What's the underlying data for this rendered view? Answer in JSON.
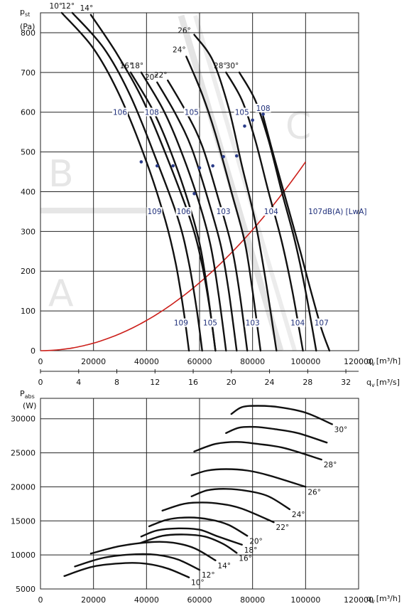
{
  "chart_data": [
    {
      "type": "line",
      "title": "",
      "ylabel": "pst",
      "ylabel_main": "p",
      "ylabel_sub": "st",
      "yunit": "(Pa)",
      "xlabel": "qv [m³/h]",
      "xlabel_main": "q",
      "xlabel_sub": "v",
      "xunit": "[m³/h]",
      "xlabel2": "qv [m³/s]",
      "xlabel2_main": "q",
      "xlabel2_sub": "v",
      "xunit2": "[m³/s]",
      "xlim": [
        0,
        120000
      ],
      "ylim": [
        0,
        850
      ],
      "x_ticks": [
        0,
        20000,
        40000,
        60000,
        80000,
        100000,
        120000
      ],
      "x_tick_labels": [
        "0",
        "20000",
        "40000",
        "60000",
        "80000",
        "100000",
        "120000"
      ],
      "y_ticks": [
        0,
        100,
        200,
        300,
        400,
        500,
        600,
        700,
        800
      ],
      "y_tick_labels": [
        "0",
        "100",
        "200",
        "300",
        "400",
        "500",
        "600",
        "700",
        "800"
      ],
      "x2_ticks": [
        0,
        4,
        8,
        12,
        16,
        20,
        24,
        28,
        32
      ],
      "x2_tick_labels": [
        "0",
        "4",
        "8",
        "12",
        "16",
        "20",
        "24",
        "28",
        "32"
      ],
      "grid": true,
      "zones": [
        "A",
        "B",
        "C"
      ],
      "series": [
        {
          "name": "10°",
          "x": [
            8000,
            20000,
            30000,
            40000,
            47000,
            51000,
            54000,
            56000
          ],
          "y": [
            850,
            760,
            640,
            475,
            330,
            220,
            100,
            0
          ]
        },
        {
          "name": "12°",
          "x": [
            12000,
            24000,
            34000,
            44000,
            52000,
            56000,
            59000,
            61000
          ],
          "y": [
            850,
            760,
            640,
            475,
            330,
            220,
            100,
            0
          ]
        },
        {
          "name": "14°",
          "x": [
            19000,
            29000,
            39000,
            49000,
            57000,
            61000,
            64000,
            66000
          ],
          "y": [
            845,
            745,
            625,
            465,
            320,
            215,
            100,
            0
          ]
        },
        {
          "name": "16°",
          "x": [
            34000,
            42000,
            48000,
            55000,
            60000,
            63000,
            66000
          ],
          "y": [
            700,
            610,
            520,
            390,
            270,
            150,
            0
          ]
        },
        {
          "name": "18°",
          "x": [
            38000,
            46000,
            52000,
            59000,
            64000,
            67000,
            70000
          ],
          "y": [
            700,
            610,
            520,
            390,
            270,
            150,
            0
          ]
        },
        {
          "name": "20°",
          "x": [
            44000,
            51000,
            57000,
            63000,
            68000,
            71000,
            74000
          ],
          "y": [
            675,
            595,
            510,
            385,
            265,
            150,
            0
          ]
        },
        {
          "name": "22°",
          "x": [
            48000,
            55000,
            61000,
            67000,
            72000,
            75000,
            78000
          ],
          "y": [
            680,
            600,
            515,
            385,
            265,
            150,
            0
          ]
        },
        {
          "name": "24°",
          "x": [
            55000,
            61000,
            66000,
            72000,
            77000,
            80000,
            83000
          ],
          "y": [
            740,
            645,
            545,
            400,
            275,
            150,
            0
          ]
        },
        {
          "name": "26°",
          "x": [
            58000,
            65000,
            71000,
            76000,
            81000,
            85000,
            89000
          ],
          "y": [
            795,
            730,
            610,
            465,
            325,
            175,
            0
          ]
        },
        {
          "name": "28°",
          "x": [
            70000,
            76000,
            81000,
            86000,
            91000,
            95000,
            99000
          ],
          "y": [
            700,
            630,
            530,
            400,
            275,
            150,
            0
          ]
        },
        {
          "name": "30°",
          "x": [
            75000,
            81000,
            86000,
            91000,
            96000,
            100000,
            104000
          ],
          "y": [
            700,
            630,
            530,
            400,
            275,
            150,
            0
          ]
        },
        {
          "name": "",
          "x": [
            84000,
            88000,
            93000,
            98000,
            102000,
            106000,
            109000
          ],
          "y": [
            590,
            490,
            370,
            250,
            150,
            55,
            0
          ]
        }
      ],
      "system_curve": {
        "color": "#cc1f1a",
        "x": [
          0,
          20000,
          40000,
          60000,
          80000,
          100000
        ],
        "y": [
          0,
          19,
          76,
          171,
          304,
          475
        ]
      },
      "db_labels_top": [
        {
          "text": "106",
          "x": 30000,
          "y": 595
        },
        {
          "text": "108",
          "x": 42000,
          "y": 595
        },
        {
          "text": "105",
          "x": 57000,
          "y": 595
        },
        {
          "text": "105",
          "x": 76000,
          "y": 595
        },
        {
          "text": "108",
          "x": 84000,
          "y": 605
        }
      ],
      "db_labels_mid": [
        {
          "text": "109",
          "x": 43000,
          "y": 345
        },
        {
          "text": "106",
          "x": 54000,
          "y": 345
        },
        {
          "text": "103",
          "x": 69000,
          "y": 345
        },
        {
          "text": "104",
          "x": 87000,
          "y": 345
        },
        {
          "text": "107dB(A) [LwA]",
          "x": 101000,
          "y": 345
        }
      ],
      "db_labels_bottom": [
        {
          "text": "109",
          "x": 53000,
          "y": 65
        },
        {
          "text": "105",
          "x": 64000,
          "y": 65
        },
        {
          "text": "103",
          "x": 80000,
          "y": 65
        },
        {
          "text": "104",
          "x": 97000,
          "y": 65
        },
        {
          "text": "107",
          "x": 106000,
          "y": 65
        }
      ]
    },
    {
      "type": "line",
      "title": "",
      "ylabel": "Pabs",
      "ylabel_main": "P",
      "ylabel_sub": "abs",
      "yunit": "(W)",
      "xlabel": "qv [m³/h]",
      "xlabel_main": "q",
      "xlabel_sub": "v",
      "xunit": "[m³/h]",
      "xlim": [
        0,
        120000
      ],
      "ylim": [
        5000,
        33000
      ],
      "x_ticks": [
        0,
        20000,
        40000,
        60000,
        80000,
        100000,
        120000
      ],
      "x_tick_labels": [
        "0",
        "20000",
        "40000",
        "60000",
        "80000",
        "100000",
        "120000"
      ],
      "y_ticks": [
        5000,
        10000,
        15000,
        20000,
        25000,
        30000
      ],
      "y_tick_labels": [
        "5000",
        "10000",
        "15000",
        "20000",
        "25000",
        "30000"
      ],
      "grid": true,
      "series": [
        {
          "name": "10°",
          "x": [
            9000,
            20000,
            32000,
            40000,
            48000,
            56000
          ],
          "y": [
            6900,
            8300,
            8800,
            8700,
            8000,
            6700
          ]
        },
        {
          "name": "12°",
          "x": [
            13000,
            24000,
            36000,
            44000,
            52000,
            60000
          ],
          "y": [
            8300,
            9600,
            10100,
            10000,
            9300,
            7800
          ]
        },
        {
          "name": "14°",
          "x": [
            19000,
            30000,
            42000,
            50000,
            58000,
            66000
          ],
          "y": [
            10200,
            11300,
            11900,
            11800,
            11000,
            9200
          ]
        },
        {
          "name": "16°",
          "x": [
            38000,
            46000,
            54000,
            62000,
            69000,
            74000
          ],
          "y": [
            11800,
            12800,
            13000,
            12700,
            11600,
            10300
          ]
        },
        {
          "name": "18°",
          "x": [
            38000,
            44000,
            52000,
            60000,
            67000,
            76000
          ],
          "y": [
            12700,
            13600,
            13900,
            13700,
            12700,
            11500
          ]
        },
        {
          "name": "20°",
          "x": [
            41000,
            48000,
            56000,
            64000,
            71000,
            78000
          ],
          "y": [
            14200,
            15200,
            15500,
            15200,
            14400,
            12800
          ]
        },
        {
          "name": "22°",
          "x": [
            46000,
            54000,
            61000,
            68000,
            76000,
            88000
          ],
          "y": [
            16500,
            17500,
            17700,
            17500,
            16800,
            14800
          ]
        },
        {
          "name": "24°",
          "x": [
            57000,
            63000,
            70000,
            78000,
            86000,
            94000
          ],
          "y": [
            18600,
            19500,
            19700,
            19400,
            18600,
            16700
          ]
        },
        {
          "name": "26°",
          "x": [
            57000,
            63000,
            70000,
            78000,
            86000,
            100000
          ],
          "y": [
            21700,
            22400,
            22600,
            22400,
            21700,
            20000
          ]
        },
        {
          "name": "28°",
          "x": [
            58000,
            66000,
            74000,
            82000,
            92000,
            106000
          ],
          "y": [
            25200,
            26300,
            26600,
            26300,
            25700,
            24000
          ]
        },
        {
          "name": "",
          "x": [
            70000,
            75000,
            81000,
            88000,
            97000,
            108000
          ],
          "y": [
            27900,
            28700,
            28800,
            28500,
            27900,
            26500
          ]
        },
        {
          "name": "30°",
          "x": [
            72000,
            76000,
            82000,
            90000,
            100000,
            110000
          ],
          "y": [
            30700,
            31700,
            31900,
            31700,
            30900,
            29200
          ]
        }
      ]
    }
  ]
}
